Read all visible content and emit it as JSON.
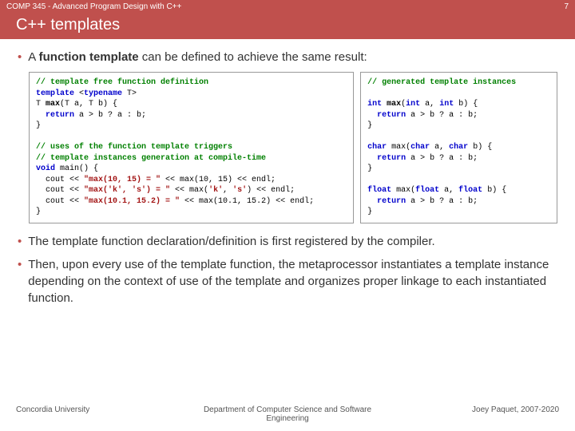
{
  "header": {
    "course": "COMP 345 - Advanced Program Design with C++",
    "pageNum": "7"
  },
  "title": "C++ templates",
  "bullets": {
    "b1_pre": "A ",
    "b1_bold": "function template",
    "b1_post": " can be defined to achieve the same result:",
    "b2": "The template function declaration/definition is first registered by the compiler.",
    "b3": "Then, upon every use of the template function, the metaprocessor instantiates a template instance depending on the context of use of the template and organizes proper linkage to each instantiated function."
  },
  "code": {
    "left": {
      "c1": "// template free function definition",
      "l2a": "template",
      "l2b": " <",
      "l2c": "typename",
      "l2d": " T>",
      "l3a": "T ",
      "l3b": "max",
      "l3c": "(T a, T b) {",
      "l4a": "  return",
      "l4b": " a > b ? a : b;",
      "l5": "}",
      "c2": "// uses of the function template triggers",
      "c3": "// template instances generation at compile-time",
      "l8a": "void",
      "l8b": " main() {",
      "l9a": "  cout << ",
      "l9s": "\"max(10, 15) = \"",
      "l9b": " << max(10, 15) << endl;",
      "l10a": "  cout << ",
      "l10s": "\"max('k', 's') = \"",
      "l10b": " << max(",
      "l10c": "'k'",
      "l10d": ", ",
      "l10e": "'s'",
      "l10f": ") << endl;",
      "l11a": "  cout << ",
      "l11s": "\"max(10.1, 15.2) = \"",
      "l11b": " << max(10.1, 15.2) << endl;",
      "l12": "}"
    },
    "right": {
      "c1": "// generated template instances",
      "l2a": "int",
      "l2b": " max",
      "l2c": "(",
      "l2d": "int",
      "l2e": " a, ",
      "l2f": "int",
      "l2g": " b) {",
      "l3a": "  return",
      "l3b": " a > b ? a : b;",
      "l4": "}",
      "l5a": "char",
      "l5b": " max(",
      "l5c": "char",
      "l5d": " a, ",
      "l5e": "char",
      "l5f": " b) {",
      "l6a": "  return",
      "l6b": " a > b ? a : b;",
      "l7": "}",
      "l8a": "float",
      "l8b": " max(",
      "l8c": "float",
      "l8d": " a, ",
      "l8e": "float",
      "l8f": " b) {",
      "l9a": "  return",
      "l9b": " a > b ? a : b;",
      "l10": "}"
    }
  },
  "footer": {
    "left": "Concordia University",
    "center": "Department of Computer Science and Software Engineering",
    "right": "Joey Paquet, 2007-2020"
  }
}
